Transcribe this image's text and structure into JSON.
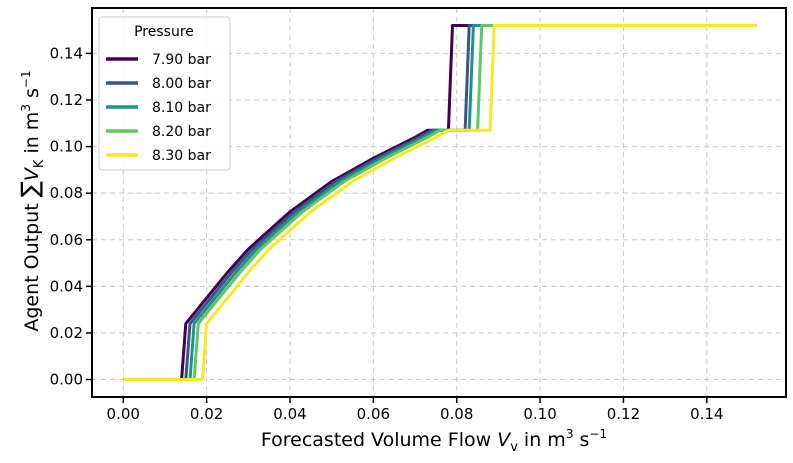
{
  "chart_data": {
    "type": "line",
    "title": "",
    "xlabel": {
      "prefix": "Forecasted Volume Flow ",
      "symbol": "V",
      "subscript": "v",
      "unit_prefix": " in m",
      "unit_sup": "3",
      "unit_mid": " s",
      "unit_sup2": "−1"
    },
    "ylabel": {
      "prefix": "Agent Output ",
      "sum": "∑",
      "symbol": "V",
      "subscript": "K",
      "unit_prefix": " in m",
      "unit_sup": "3",
      "unit_mid": " s",
      "unit_sup2": "−1"
    },
    "xlim": [
      -0.0075,
      0.159
    ],
    "ylim": [
      -0.0075,
      0.1595
    ],
    "xticks": [
      0.0,
      0.02,
      0.04,
      0.06,
      0.08,
      0.1,
      0.12,
      0.14
    ],
    "xtick_labels": [
      "0.00",
      "0.02",
      "0.04",
      "0.06",
      "0.08",
      "0.10",
      "0.12",
      "0.14"
    ],
    "yticks": [
      0.0,
      0.02,
      0.04,
      0.06,
      0.08,
      0.1,
      0.12,
      0.14
    ],
    "ytick_labels": [
      "0.00",
      "0.02",
      "0.04",
      "0.06",
      "0.08",
      "0.10",
      "0.12",
      "0.14"
    ],
    "grid": true,
    "legend": {
      "title": "Pressure",
      "position": "top-left"
    },
    "series": [
      {
        "name": "7.90 bar",
        "color": "#440154",
        "x": [
          0.0,
          0.014,
          0.015,
          0.02,
          0.025,
          0.03,
          0.04,
          0.05,
          0.06,
          0.07,
          0.073,
          0.077,
          0.078,
          0.079,
          0.152
        ],
        "y": [
          0.0,
          0.0,
          0.024,
          0.035,
          0.046,
          0.056,
          0.072,
          0.085,
          0.095,
          0.104,
          0.107,
          0.107,
          0.107,
          0.152,
          0.152
        ]
      },
      {
        "name": "8.00 bar",
        "color": "#3b528b",
        "x": [
          0.0,
          0.015,
          0.016,
          0.021,
          0.026,
          0.031,
          0.041,
          0.051,
          0.061,
          0.071,
          0.074,
          0.081,
          0.082,
          0.083,
          0.152
        ],
        "y": [
          0.0,
          0.0,
          0.024,
          0.035,
          0.046,
          0.056,
          0.072,
          0.085,
          0.095,
          0.104,
          0.107,
          0.107,
          0.107,
          0.152,
          0.152
        ]
      },
      {
        "name": "8.10 bar",
        "color": "#21918c",
        "x": [
          0.0,
          0.016,
          0.017,
          0.022,
          0.027,
          0.032,
          0.042,
          0.052,
          0.062,
          0.072,
          0.075,
          0.082,
          0.083,
          0.084,
          0.152
        ],
        "y": [
          0.0,
          0.0,
          0.024,
          0.035,
          0.046,
          0.056,
          0.072,
          0.085,
          0.095,
          0.104,
          0.107,
          0.107,
          0.107,
          0.152,
          0.152
        ]
      },
      {
        "name": "8.20 bar",
        "color": "#5ec962",
        "x": [
          0.0,
          0.017,
          0.018,
          0.023,
          0.028,
          0.033,
          0.043,
          0.053,
          0.063,
          0.073,
          0.076,
          0.084,
          0.085,
          0.086,
          0.152
        ],
        "y": [
          0.0,
          0.0,
          0.024,
          0.035,
          0.046,
          0.056,
          0.072,
          0.085,
          0.095,
          0.104,
          0.107,
          0.107,
          0.107,
          0.152,
          0.152
        ]
      },
      {
        "name": "8.30 bar",
        "color": "#fde725",
        "x": [
          0.0,
          0.019,
          0.02,
          0.025,
          0.03,
          0.035,
          0.045,
          0.055,
          0.065,
          0.075,
          0.078,
          0.087,
          0.088,
          0.089,
          0.152
        ],
        "y": [
          0.0,
          0.0,
          0.024,
          0.035,
          0.046,
          0.056,
          0.072,
          0.085,
          0.095,
          0.104,
          0.107,
          0.107,
          0.107,
          0.152,
          0.152
        ]
      }
    ]
  }
}
